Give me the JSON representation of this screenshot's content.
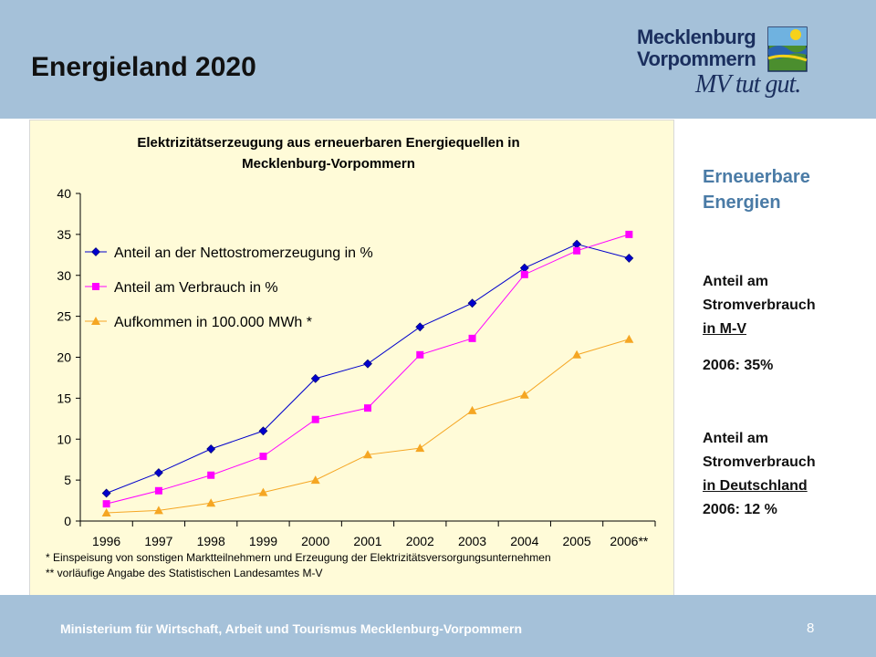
{
  "slide": {
    "title": "Energieland 2020",
    "page_number": "8"
  },
  "logo": {
    "line1": "Mecklenburg",
    "line2": "Vorpommern",
    "slogan": "MV tut gut."
  },
  "side": {
    "heading1": "Erneuerbare",
    "heading2": "Energien",
    "block1_l1": "Anteil am",
    "block1_l2": "Stromverbrauch",
    "block1_l3": "in M-V",
    "block1_l4": "2006: 35%",
    "block2_l1": "Anteil am",
    "block2_l2": "Stromverbrauch",
    "block2_l3": "in Deutschland",
    "block2_l4": "2006: 12 %"
  },
  "footer": {
    "text": "Ministerium für Wirtschaft, Arbeit und Tourismus Mecklenburg-Vorpommern"
  },
  "colors": {
    "header_bg": "#a5c1d9",
    "chart_bg": "#fffbd8",
    "series1": "#0000cc",
    "series2": "#ff00ff",
    "series3": "#f5a623",
    "side_heading": "#4a7ba6"
  },
  "chart_data": {
    "type": "line",
    "title_line1": "Elektrizitätserzeugung aus  erneuerbaren Energiequellen in",
    "title_line2": "Mecklenburg-Vorpommern",
    "categories": [
      "1996",
      "1997",
      "1998",
      "1999",
      "2000",
      "2001",
      "2002",
      "2003",
      "2004",
      "2005",
      "2006**"
    ],
    "ylim": [
      0,
      40
    ],
    "yticks": [
      0,
      5,
      10,
      15,
      20,
      25,
      30,
      35,
      40
    ],
    "grid": false,
    "legend_position": "top-left",
    "series": [
      {
        "name": "Anteil an der Nettostromerzeugung in %",
        "marker": "diamond",
        "color": "#0000cc",
        "values": [
          3.4,
          5.9,
          8.8,
          11.0,
          17.4,
          19.2,
          23.7,
          26.6,
          30.9,
          33.8,
          32.1
        ]
      },
      {
        "name": "Anteil am Verbrauch in %",
        "marker": "square",
        "color": "#ff00ff",
        "values": [
          2.1,
          3.7,
          5.6,
          7.9,
          12.4,
          13.8,
          20.3,
          22.3,
          30.1,
          33.0,
          35.0
        ]
      },
      {
        "name": "Aufkommen in 100.000 MWh  *",
        "marker": "triangle",
        "color": "#f5a623",
        "values": [
          1.0,
          1.3,
          2.2,
          3.5,
          5.0,
          8.1,
          8.9,
          13.5,
          15.4,
          20.3,
          22.2
        ]
      }
    ],
    "footnote1": "*  Einspeisung von sonstigen Marktteilnehmern und Erzeugung der Elektrizitätsversorgungsunternehmen",
    "footnote2": "** vorläufige Angabe des Statistischen Landesamtes M-V"
  }
}
